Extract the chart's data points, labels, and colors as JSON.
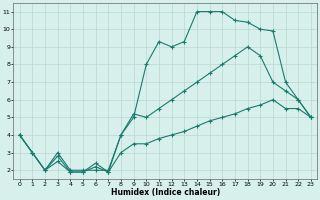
{
  "title": "",
  "xlabel": "Humidex (Indice chaleur)",
  "bg_color": "#d8f0ec",
  "grid_color": "#b8d8d0",
  "line_color": "#1a7a6e",
  "xlim": [
    -0.5,
    23.5
  ],
  "ylim": [
    1.5,
    11.5
  ],
  "xticks": [
    0,
    1,
    2,
    3,
    4,
    5,
    6,
    7,
    8,
    9,
    10,
    11,
    12,
    13,
    14,
    15,
    16,
    17,
    18,
    19,
    20,
    21,
    22,
    23
  ],
  "yticks": [
    2,
    3,
    4,
    5,
    6,
    7,
    8,
    9,
    10,
    11
  ],
  "line1": {
    "x": [
      0,
      1,
      2,
      3,
      4,
      5,
      6,
      7,
      8,
      9,
      10,
      11,
      12,
      13,
      14,
      15,
      16,
      17,
      18,
      19,
      20,
      21,
      22,
      23
    ],
    "y": [
      4,
      3,
      2,
      3,
      2,
      2,
      2,
      2,
      4,
      5,
      8,
      9.3,
      9,
      9.3,
      11,
      11,
      11,
      10.5,
      10.4,
      10,
      9.9,
      7,
      6,
      5
    ]
  },
  "line2": {
    "x": [
      0,
      1,
      2,
      3,
      4,
      5,
      6,
      7,
      8,
      9,
      10,
      11,
      12,
      13,
      14,
      15,
      16,
      17,
      18,
      19,
      20,
      21,
      22,
      23
    ],
    "y": [
      4,
      3,
      2,
      2.8,
      1.9,
      1.9,
      2.4,
      1.9,
      4,
      5.2,
      5,
      5.5,
      6,
      6.5,
      7,
      7.5,
      8,
      8.5,
      9,
      8.5,
      7,
      6.5,
      6,
      5
    ]
  },
  "line3": {
    "x": [
      0,
      1,
      2,
      3,
      4,
      5,
      6,
      7,
      8,
      9,
      10,
      11,
      12,
      13,
      14,
      15,
      16,
      17,
      18,
      19,
      20,
      21,
      22,
      23
    ],
    "y": [
      4,
      3,
      2,
      2.5,
      1.9,
      1.9,
      2.2,
      1.9,
      3,
      3.5,
      3.5,
      3.8,
      4,
      4.2,
      4.5,
      4.8,
      5,
      5.2,
      5.5,
      5.7,
      6,
      5.5,
      5.5,
      5
    ]
  }
}
